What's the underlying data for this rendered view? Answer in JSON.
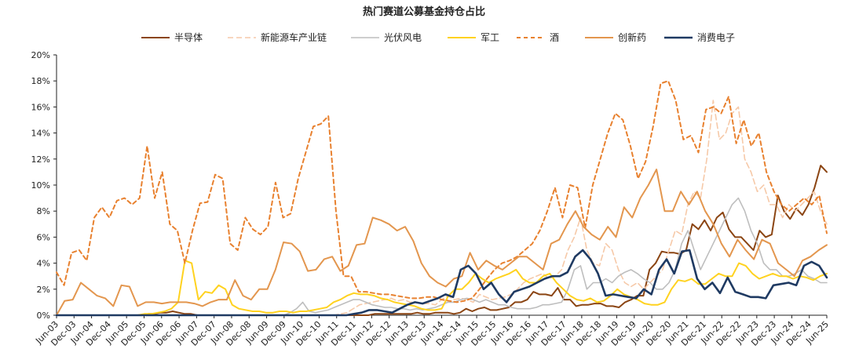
{
  "chart_data": {
    "type": "line",
    "title": "热门赛道公募基金持仓占比",
    "xlabel": "",
    "ylabel": "",
    "ylim": [
      0,
      20
    ],
    "yticks": [
      "0%",
      "2%",
      "4%",
      "6%",
      "8%",
      "10%",
      "12%",
      "14%",
      "16%",
      "18%",
      "20%"
    ],
    "grid": false,
    "legend_position": "top",
    "x_tick_labels": [
      "Jun-03",
      "Dec-03",
      "Jun-04",
      "Dec-04",
      "Jun-05",
      "Dec-05",
      "Jun-06",
      "Dec-06",
      "Jun-07",
      "Dec-07",
      "Jun-08",
      "Dec-08",
      "Jun-09",
      "Dec-09",
      "Jun-10",
      "Dec-10",
      "Jun-11",
      "Dec-11",
      "Jun-12",
      "Dec-12",
      "Jun-13",
      "Dec-13",
      "Jun-14",
      "Dec-14",
      "Jun-15",
      "Dec-15",
      "Jun-16",
      "Dec-16",
      "Jun-17",
      "Dec-17",
      "Jun-18",
      "Dec-18",
      "Jun-19",
      "Dec-19",
      "Jun-20",
      "Dec-20",
      "Jun-21",
      "Dec-21",
      "Jun-22",
      "Dec-22",
      "Jun-23",
      "Dec-23",
      "Jun-24",
      "Dec-24",
      "Jun-25"
    ],
    "x_start": "2003Q2",
    "x_end": "2025Q2",
    "frequency": "quarterly",
    "series": [
      {
        "name": "半导体",
        "color": "#8B4513",
        "dash": "solid",
        "width": 2,
        "values": [
          0,
          0,
          0,
          0,
          0,
          0,
          0,
          0,
          0,
          0,
          0,
          0,
          0,
          0,
          0,
          0.1,
          0.1,
          0.2,
          0.2,
          0.3,
          0.2,
          0.1,
          0.1,
          0,
          0,
          0,
          0,
          0,
          0,
          0,
          0,
          0,
          0,
          0,
          0,
          0,
          0,
          0,
          0,
          0,
          0,
          0,
          0,
          0,
          0,
          0,
          0,
          0,
          0,
          0,
          0,
          0,
          0.1,
          0.1,
          0.1,
          0.1,
          0.1,
          0.1,
          0.1,
          0.2,
          0.1,
          0.1,
          0.2,
          0.2,
          0.2,
          0.1,
          0.2,
          0.5,
          0.3,
          0.5,
          0.6,
          0.4,
          0.4,
          0.5,
          0.6,
          1.0,
          1.0,
          1.2,
          1.8,
          1.6,
          1.6,
          1.5,
          2.1,
          1.2,
          1.2,
          0.7,
          0.8,
          0.8,
          0.9,
          0.9,
          0.7,
          0.7,
          0.6,
          1.0,
          1.2,
          1.5,
          1.5,
          3.5,
          4.0,
          4.9,
          4.8,
          4.8,
          4.7,
          5.0,
          7.0,
          6.6,
          7.3,
          6.5,
          7.5,
          7.9,
          6.6,
          6.0,
          6.0,
          5.5,
          5.0,
          6.5,
          6.0,
          6.2,
          9.2,
          8.0,
          7.4,
          8.2,
          7.7,
          8.5,
          9.8,
          11.5,
          11.0
        ]
      },
      {
        "name": "新能源车产业链",
        "color": "#F6C9A8",
        "dash": "7,4",
        "width": 1.6,
        "values": [
          0,
          0,
          0,
          0,
          0,
          0,
          0,
          0,
          0,
          0,
          0,
          0,
          0,
          0,
          0,
          0,
          0,
          0,
          0,
          0,
          0,
          0,
          0,
          0,
          0,
          0,
          0,
          0,
          0,
          0,
          0,
          0,
          0,
          0,
          0,
          0,
          0,
          0,
          0,
          0,
          0,
          0,
          0,
          0,
          0,
          0.1,
          0.2,
          0.5,
          0.8,
          0.9,
          1.0,
          1.1,
          1.2,
          1.3,
          1.1,
          1.2,
          1.0,
          1.0,
          0.9,
          0.9,
          0.8,
          1.2,
          1.5,
          1.2,
          1.3,
          1.2,
          1.0,
          1.6,
          1.4,
          1.2,
          1.3,
          1.4,
          1.6,
          2.0,
          2.5,
          2.8,
          3.0,
          3.2,
          2.8,
          3.0,
          3.5,
          5.0,
          6.0,
          7.5,
          5.0,
          4.0,
          3.8,
          5.5,
          5.0,
          3.5,
          2.5,
          2.2,
          2.5,
          2.0,
          2.5,
          3.0,
          3.5,
          5.0,
          6.5,
          6.2,
          8.5,
          9.5,
          9.0,
          12.0,
          16.5,
          13.5,
          14.0,
          15.5,
          16.0,
          12.0,
          11.0,
          9.5,
          10.0,
          8.5,
          8.5,
          7.5,
          8.5,
          8.0,
          8.5,
          9.0,
          9.5,
          8.0,
          7.0
        ]
      },
      {
        "name": "光伏风电",
        "color": "#BEBEBE",
        "dash": "solid",
        "width": 1.6,
        "values": [
          0,
          0,
          0,
          0,
          0,
          0,
          0,
          0,
          0,
          0,
          0,
          0,
          0,
          0,
          0,
          0,
          0,
          0,
          0,
          0,
          0,
          0,
          0,
          0,
          0,
          0,
          0,
          0,
          0,
          0,
          0,
          0,
          0,
          0,
          0,
          0,
          0,
          0.2,
          0.5,
          1.0,
          0.3,
          0.2,
          0.3,
          0.4,
          0.6,
          0.8,
          1.0,
          1.2,
          1.2,
          1.0,
          0.8,
          0.7,
          0.6,
          0.6,
          0.5,
          0.5,
          0.4,
          0.5,
          0.4,
          0.5,
          0.6,
          0.8,
          1.0,
          1.0,
          1.2,
          1.3,
          1.2,
          1.0,
          1.2,
          1.0,
          0.8,
          0.8,
          0.6,
          0.5,
          0.5,
          0.5,
          0.6,
          0.8,
          0.8,
          0.9,
          1.0,
          2.0,
          3.5,
          3.8,
          2.0,
          2.5,
          2.5,
          2.8,
          2.5,
          3.0,
          3.3,
          3.5,
          3.2,
          2.8,
          2.5,
          2.0,
          2.0,
          2.5,
          3.5,
          5.5,
          6.5,
          5.0,
          3.5,
          4.5,
          5.5,
          6.5,
          7.5,
          8.5,
          9.0,
          8.0,
          6.5,
          5.5,
          4.0,
          3.5,
          3.5,
          3.0,
          3.0,
          3.2,
          3.5,
          3.0,
          2.8,
          2.5,
          2.5
        ]
      },
      {
        "name": "军工",
        "color": "#FFD21F",
        "dash": "solid",
        "width": 2,
        "values": [
          0,
          0,
          0,
          0,
          0,
          0,
          0,
          0,
          0,
          0,
          0,
          0,
          0,
          0.1,
          0.1,
          0.2,
          0.3,
          0.5,
          1.0,
          4.2,
          4.0,
          1.2,
          1.8,
          1.7,
          2.3,
          2.0,
          0.8,
          0.5,
          0.4,
          0.3,
          0.3,
          0.2,
          0.2,
          0.3,
          0.3,
          0.2,
          0.3,
          0.3,
          0.4,
          0.5,
          0.6,
          1.0,
          1.2,
          1.5,
          1.7,
          1.6,
          1.6,
          1.5,
          1.3,
          1.2,
          1.0,
          0.9,
          0.8,
          0.7,
          0.5,
          0.4,
          0.4,
          0.5,
          1.5,
          2.0,
          2.0,
          2.5,
          3.2,
          2.8,
          2.5,
          2.8,
          3.0,
          3.2,
          3.5,
          2.8,
          2.5,
          2.5,
          3.0,
          3.2,
          2.5,
          2.0,
          1.5,
          1.2,
          1.1,
          1.3,
          1.0,
          1.1,
          1.5,
          2.0,
          1.6,
          1.4,
          1.2,
          0.9,
          0.8,
          0.8,
          1.0,
          2.0,
          2.7,
          2.6,
          2.8,
          2.4,
          2.4,
          2.8,
          3.2,
          3.0,
          3.0,
          4.0,
          3.8,
          3.2,
          2.8,
          3.0,
          3.2,
          3.0,
          3.0,
          2.8,
          3.0,
          2.9,
          2.7,
          3.0,
          3.2
        ]
      },
      {
        "name": "酒",
        "color": "#E8812F",
        "dash": "5,4",
        "width": 2,
        "values": [
          3.3,
          2.3,
          4.8,
          5.0,
          4.2,
          7.5,
          8.3,
          7.5,
          8.8,
          9.0,
          8.5,
          9.0,
          13.0,
          9.0,
          11.0,
          7.0,
          6.5,
          4.0,
          6.5,
          8.6,
          8.7,
          10.8,
          10.5,
          5.5,
          5.0,
          7.5,
          6.6,
          6.2,
          6.8,
          10.2,
          7.5,
          7.8,
          10.5,
          12.5,
          14.5,
          14.7,
          15.3,
          8.0,
          3.0,
          3.0,
          1.8,
          1.8,
          1.7,
          1.6,
          1.6,
          1.5,
          1.4,
          1.3,
          1.3,
          1.4,
          1.4,
          1.2,
          1.1,
          1.0,
          1.1,
          1.3,
          2.0,
          2.8,
          3.5,
          4.0,
          4.2,
          4.5,
          5.0,
          5.5,
          6.5,
          8.0,
          9.8,
          7.5,
          10.0,
          9.8,
          6.7,
          10.0,
          12.0,
          14.0,
          15.5,
          15.0,
          13.0,
          10.5,
          11.8,
          14.5,
          17.8,
          18.0,
          16.5,
          13.5,
          13.8,
          12.5,
          15.8,
          16.0,
          15.5,
          16.8,
          13.2,
          15.0,
          13.0,
          14.0,
          11.0,
          9.5,
          8.5,
          8.0,
          8.5,
          9.0,
          8.5,
          9.2,
          6.3
        ]
      },
      {
        "name": "创新药",
        "color": "#E3964E",
        "dash": "solid",
        "width": 2,
        "values": [
          0,
          1.1,
          1.2,
          2.5,
          2.0,
          1.5,
          1.3,
          0.7,
          2.3,
          2.2,
          0.7,
          1.0,
          1.0,
          0.9,
          1.0,
          1.0,
          1.0,
          0.9,
          0.7,
          1.0,
          1.2,
          1.2,
          2.7,
          1.5,
          1.2,
          2.0,
          2.0,
          3.5,
          5.6,
          5.5,
          4.9,
          3.4,
          3.5,
          4.3,
          4.5,
          3.4,
          3.8,
          5.4,
          5.5,
          7.5,
          7.3,
          7.0,
          6.5,
          6.8,
          5.7,
          4.0,
          3.0,
          2.5,
          2.2,
          2.8,
          3.0,
          4.8,
          3.5,
          4.2,
          3.8,
          3.5,
          4.0,
          4.5,
          4.5,
          4.0,
          3.5,
          5.5,
          5.8,
          7.0,
          8.0,
          6.8,
          6.2,
          5.8,
          6.8,
          6.0,
          8.3,
          7.5,
          9.0,
          10.0,
          11.2,
          8.0,
          8.0,
          9.5,
          8.5,
          9.5,
          8.0,
          7.0,
          5.5,
          4.5,
          5.8,
          5.0,
          4.3,
          5.8,
          5.5,
          4.0,
          3.5,
          3.0,
          4.2,
          4.5,
          5.0,
          5.4
        ]
      },
      {
        "name": "消费电子",
        "color": "#1F3A62",
        "dash": "solid",
        "width": 2.6,
        "values": [
          0,
          0,
          0,
          0,
          0,
          0,
          0,
          0,
          0,
          0,
          0,
          0,
          0,
          0,
          0,
          0,
          0,
          0,
          0,
          0,
          0,
          0,
          0,
          0,
          0,
          0,
          0,
          0,
          0,
          0,
          0,
          0,
          0,
          0,
          0,
          0,
          0,
          0,
          0,
          0.1,
          0.2,
          0.4,
          0.4,
          0.3,
          0.2,
          0.5,
          0.8,
          1.0,
          0.9,
          1.1,
          1.3,
          1.6,
          1.4,
          3.5,
          3.8,
          3.2,
          2.0,
          2.5,
          1.6,
          1.0,
          1.8,
          2.0,
          2.2,
          2.5,
          2.8,
          3.0,
          3.0,
          3.3,
          4.5,
          5.0,
          4.3,
          3.2,
          1.5,
          1.6,
          1.5,
          1.4,
          1.3,
          2.0,
          1.6,
          3.5,
          4.3,
          3.2,
          4.9,
          5.0,
          2.8,
          2.0,
          2.5,
          1.7,
          2.9,
          1.8,
          1.6,
          1.4,
          1.4,
          1.3,
          2.3,
          2.4,
          2.5,
          2.3,
          3.8,
          4.1,
          3.8,
          2.9
        ]
      }
    ]
  }
}
